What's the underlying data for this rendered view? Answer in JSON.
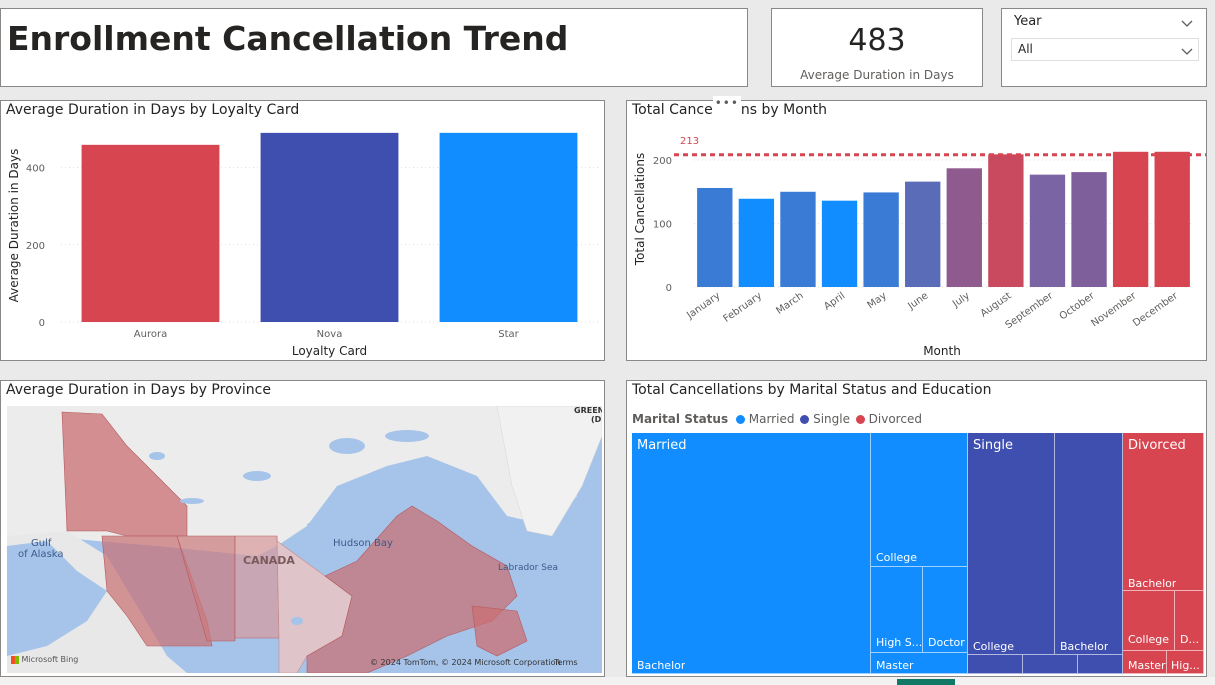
{
  "page_title": "Enrollment Cancellation Trend",
  "kpi": {
    "value": "483",
    "label": "Average Duration in Days"
  },
  "slicer": {
    "label": "Year",
    "value": "All"
  },
  "loyalty_chart": {
    "title": "Average Duration in Days by Loyalty Card",
    "chart_data": {
      "type": "bar",
      "categories": [
        "Aurora",
        "Nova",
        "Star"
      ],
      "values": [
        459,
        490,
        490
      ],
      "colors": [
        "#d64550",
        "#3f4fb0",
        "#118dff"
      ],
      "xlabel": "Loyalty Card",
      "ylabel": "Average Duration in Days",
      "yticks": [
        "0",
        "200",
        "400"
      ],
      "ylim": [
        0,
        500
      ]
    }
  },
  "month_chart": {
    "title_left": "Total Cance",
    "title_right": "ns by Month",
    "more_icon": "•••",
    "chart_data": {
      "type": "bar",
      "categories": [
        "January",
        "February",
        "March",
        "April",
        "May",
        "June",
        "July",
        "August",
        "September",
        "October",
        "November",
        "December"
      ],
      "values": [
        156,
        139,
        150,
        136,
        149,
        166,
        187,
        209,
        177,
        181,
        213,
        213
      ],
      "colors": [
        "#3a7bd5",
        "#118dff",
        "#3a7bd5",
        "#118dff",
        "#3a7bd5",
        "#5a6bb8",
        "#8f5a8e",
        "#c94a5e",
        "#7a64a3",
        "#7e5f9c",
        "#d64550",
        "#d64550"
      ],
      "xlabel": "Month",
      "ylabel": "Total Cancellations",
      "yticks": [
        "0",
        "100",
        "200"
      ],
      "ylim": [
        0,
        230
      ],
      "reference_line": {
        "value": 213,
        "label": "213",
        "color": "#d64550"
      }
    }
  },
  "map": {
    "title": "Average Duration in Days by Province",
    "labels": {
      "canada": "CANADA",
      "hudson": "Hudson Bay",
      "alaska1": "Gulf",
      "alaska2": "of Alaska",
      "labrador": "Labrador Sea",
      "green1": "GREEN",
      "green2": "(DI",
      "bing": "Microsoft Bing",
      "copyright": "© 2024 TomTom, © 2024 Microsoft Corporation",
      "terms": "Terms"
    }
  },
  "treemap": {
    "title": "Total Cancellations by Marital Status and Education",
    "legend_title": "Marital Status",
    "legend": [
      {
        "name": "Married",
        "color": "#118dff"
      },
      {
        "name": "Single",
        "color": "#3f4fb0"
      },
      {
        "name": "Divorced",
        "color": "#d64550"
      }
    ],
    "groups": {
      "married": "Married",
      "single": "Single",
      "divorced": "Divorced"
    },
    "tiles": {
      "married_bachelor": "Bachelor",
      "married_college": "College",
      "married_highs": "High S...",
      "married_doctor": "Doctor",
      "married_master": "Master",
      "single_college": "College",
      "single_bachelor": "Bachelor",
      "divorced_bachelor": "Bachelor",
      "divorced_college": "College",
      "divorced_d": "D...",
      "divorced_master": "Master",
      "divorced_hig": "Hig..."
    }
  }
}
